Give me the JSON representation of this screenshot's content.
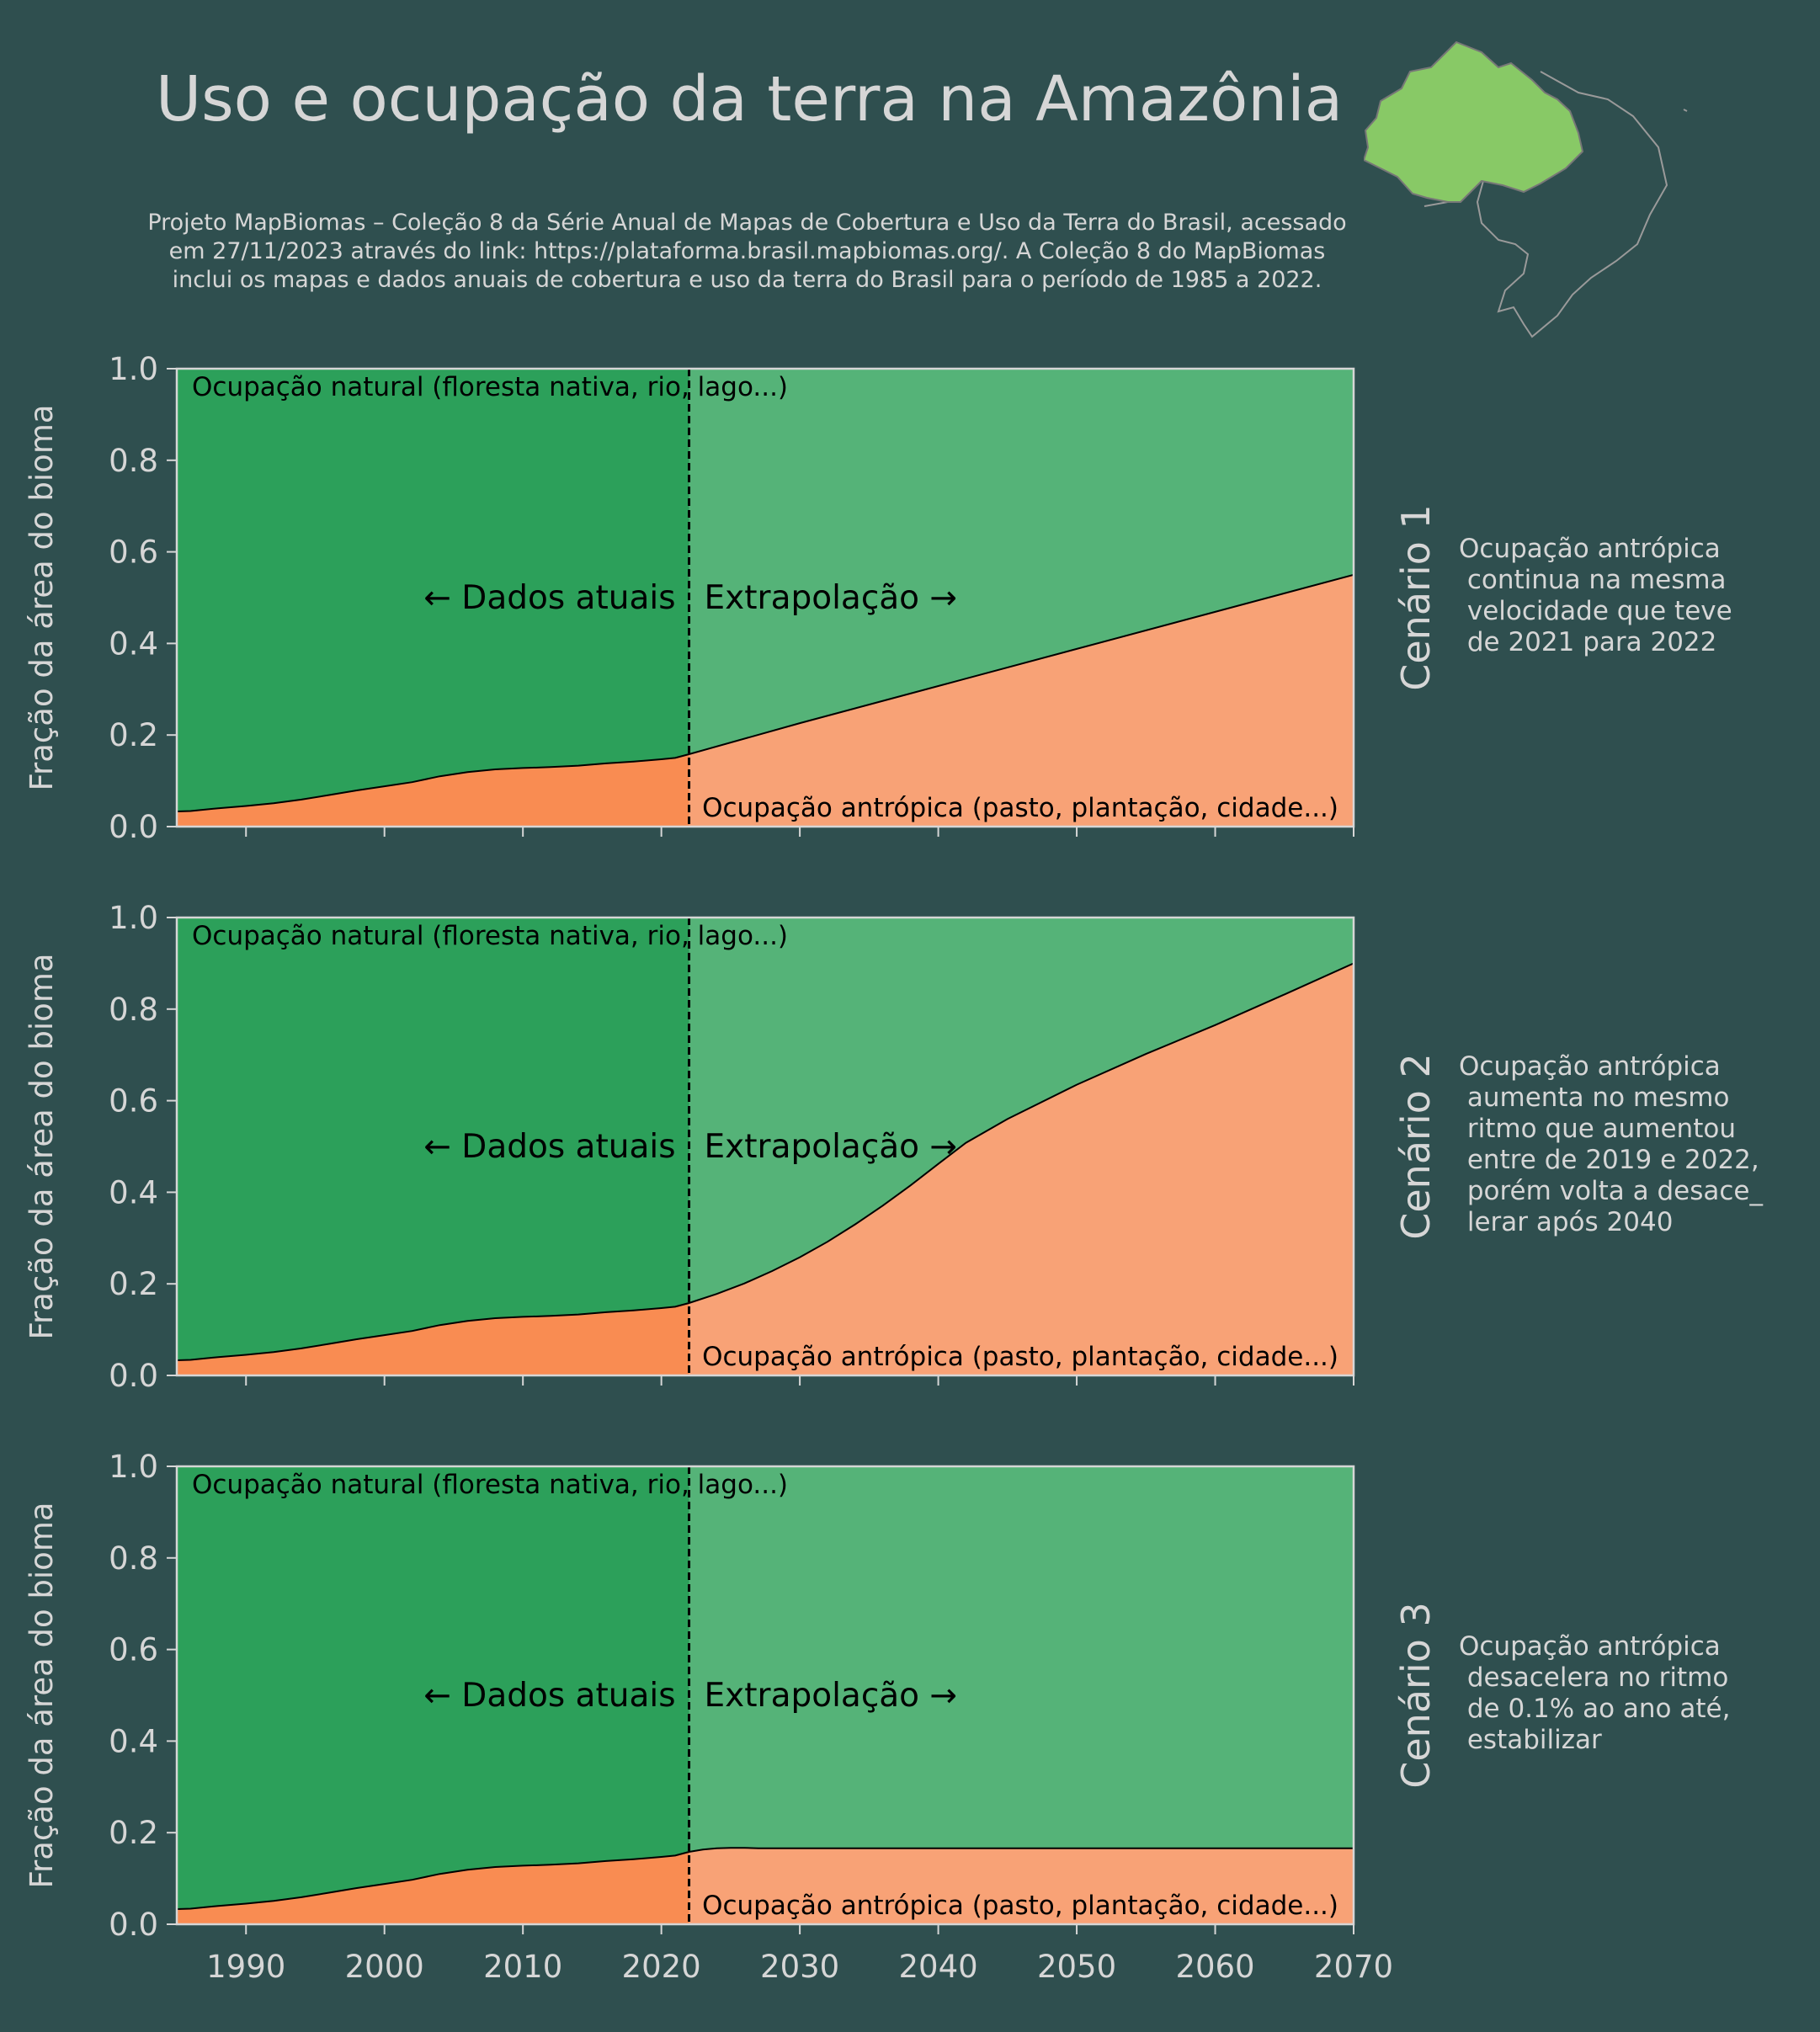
{
  "title": "Uso e ocupação da terra na Amazônia",
  "subtitle": [
    "Projeto MapBiomas – Coleção 8 da Série Anual de Mapas de Cobertura e Uso da Terra do Brasil, acessado",
    "em 27/11/2023 através do link: https://plataforma.brasil.mapbiomas.org/. A Coleção 8 do MapBiomas",
    "inclui os mapas e dados anuais de cobertura e uso da terra do Brasil para o período de 1985 a 2022."
  ],
  "colors": {
    "background": "#2f4f4f",
    "natural_current": "#2ca05a",
    "natural_extrapolated": "#55b378",
    "anthropic_current": "#f98c52",
    "anthropic_extrapolated": "#f8a276",
    "text_light": "#d6d6d6",
    "map_amazon": "#88c966"
  },
  "chart_data": [
    {
      "type": "area",
      "panel_label": "Cenário 1",
      "description": [
        "Ocupação antrópica",
        " continua na mesma",
        " velocidade que teve",
        " de 2021 para 2022"
      ],
      "ylabel": "Fração da área do bioma",
      "xlim": [
        1985,
        2070
      ],
      "ylim": [
        0,
        1
      ],
      "xticks": [
        "1990",
        "2000",
        "2010",
        "2020",
        "2030",
        "2040",
        "2050",
        "2060",
        "2070"
      ],
      "yticks": [
        "0.0",
        "0.2",
        "0.4",
        "0.6",
        "0.8",
        "1.0"
      ],
      "divider_x": 2022,
      "annotations": {
        "natural": "Ocupação natural (floresta nativa, rio, lago...)",
        "anthropic": "Ocupação antrópica (pasto, plantação, cidade...)",
        "current": "← Dados atuais",
        "extrapolated": "Extrapolação →"
      },
      "series": [
        {
          "name": "Ocupação antrópica",
          "x": [
            1985,
            1986,
            1988,
            1990,
            1992,
            1994,
            1996,
            1998,
            2000,
            2002,
            2004,
            2006,
            2008,
            2010,
            2012,
            2014,
            2016,
            2018,
            2020,
            2021,
            2022,
            2030,
            2040,
            2050,
            2060,
            2070
          ],
          "values": [
            0.033,
            0.034,
            0.04,
            0.045,
            0.051,
            0.059,
            0.069,
            0.079,
            0.088,
            0.097,
            0.11,
            0.119,
            0.125,
            0.128,
            0.13,
            0.133,
            0.138,
            0.142,
            0.147,
            0.15,
            0.158,
            0.226,
            0.307,
            0.388,
            0.469,
            0.55
          ]
        }
      ]
    },
    {
      "type": "area",
      "panel_label": "Cenário 2",
      "description": [
        "Ocupação antrópica",
        " aumenta no mesmo",
        " ritmo que aumentou",
        " entre de 2019 e 2022,",
        " porém volta a desace_",
        " lerar após 2040"
      ],
      "ylabel": "Fração da área do bioma",
      "xlim": [
        1985,
        2070
      ],
      "ylim": [
        0,
        1
      ],
      "xticks": [
        "1990",
        "2000",
        "2010",
        "2020",
        "2030",
        "2040",
        "2050",
        "2060",
        "2070"
      ],
      "yticks": [
        "0.0",
        "0.2",
        "0.4",
        "0.6",
        "0.8",
        "1.0"
      ],
      "divider_x": 2022,
      "annotations": {
        "natural": "Ocupação natural (floresta nativa, rio, lago...)",
        "anthropic": "Ocupação antrópica (pasto, plantação, cidade...)",
        "current": "← Dados atuais",
        "extrapolated": "Extrapolação →"
      },
      "series": [
        {
          "name": "Ocupação antrópica",
          "x": [
            1985,
            1986,
            1988,
            1990,
            1992,
            1994,
            1996,
            1998,
            2000,
            2002,
            2004,
            2006,
            2008,
            2010,
            2012,
            2014,
            2016,
            2018,
            2020,
            2021,
            2022,
            2024,
            2026,
            2028,
            2030,
            2032,
            2034,
            2036,
            2038,
            2040,
            2042,
            2045,
            2050,
            2055,
            2060,
            2065,
            2070
          ],
          "values": [
            0.033,
            0.034,
            0.04,
            0.045,
            0.051,
            0.059,
            0.069,
            0.079,
            0.088,
            0.097,
            0.11,
            0.119,
            0.125,
            0.128,
            0.13,
            0.133,
            0.138,
            0.142,
            0.147,
            0.15,
            0.158,
            0.178,
            0.201,
            0.228,
            0.258,
            0.292,
            0.33,
            0.371,
            0.415,
            0.462,
            0.508,
            0.56,
            0.635,
            0.702,
            0.765,
            0.832,
            0.9
          ]
        }
      ]
    },
    {
      "type": "area",
      "panel_label": "Cenário 3",
      "description": [
        "Ocupação antrópica",
        " desacelera no ritmo",
        " de 0.1% ao ano até,",
        " estabilizar"
      ],
      "ylabel": "Fração da área do bioma",
      "xlim": [
        1985,
        2070
      ],
      "ylim": [
        0,
        1
      ],
      "xticks": [
        "1990",
        "2000",
        "2010",
        "2020",
        "2030",
        "2040",
        "2050",
        "2060",
        "2070"
      ],
      "yticks": [
        "0.0",
        "0.2",
        "0.4",
        "0.6",
        "0.8",
        "1.0"
      ],
      "divider_x": 2022,
      "annotations": {
        "natural": "Ocupação natural (floresta nativa, rio, lago...)",
        "anthropic": "Ocupação antrópica (pasto, plantação, cidade...)",
        "current": "← Dados atuais",
        "extrapolated": "Extrapolação →"
      },
      "series": [
        {
          "name": "Ocupação antrópica",
          "x": [
            1985,
            1986,
            1988,
            1990,
            1992,
            1994,
            1996,
            1998,
            2000,
            2002,
            2004,
            2006,
            2008,
            2010,
            2012,
            2014,
            2016,
            2018,
            2020,
            2021,
            2022,
            2023,
            2024,
            2025,
            2026,
            2027,
            2030,
            2040,
            2050,
            2060,
            2070
          ],
          "values": [
            0.033,
            0.034,
            0.04,
            0.045,
            0.051,
            0.059,
            0.069,
            0.079,
            0.088,
            0.097,
            0.11,
            0.119,
            0.125,
            0.128,
            0.13,
            0.133,
            0.138,
            0.142,
            0.147,
            0.15,
            0.158,
            0.163,
            0.166,
            0.167,
            0.167,
            0.166,
            0.166,
            0.166,
            0.166,
            0.166,
            0.166
          ]
        }
      ]
    }
  ]
}
